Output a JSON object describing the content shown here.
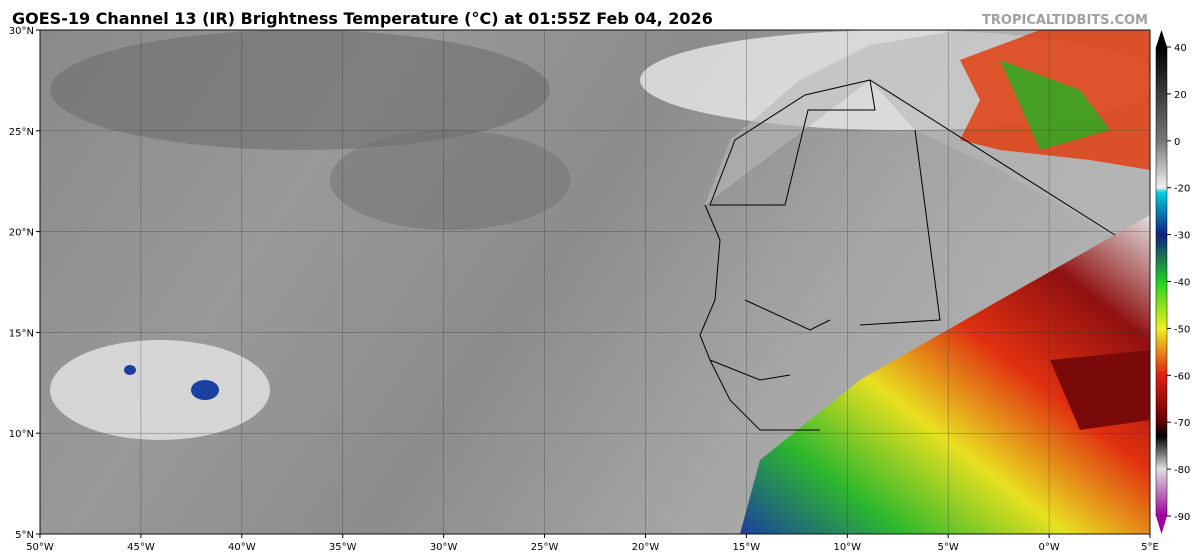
{
  "header": {
    "title": "GOES-19 Channel 13 (IR) Brightness Temperature (°C) at 01:55Z Feb 04, 2026",
    "watermark": "TROPICALTIDBITS.COM"
  },
  "map": {
    "lon_ticks": [
      {
        "value": -50,
        "label": "50°W"
      },
      {
        "value": -45,
        "label": "45°W"
      },
      {
        "value": -40,
        "label": "40°W"
      },
      {
        "value": -35,
        "label": "35°W"
      },
      {
        "value": -30,
        "label": "30°W"
      },
      {
        "value": -25,
        "label": "25°W"
      },
      {
        "value": -20,
        "label": "20°W"
      },
      {
        "value": -15,
        "label": "15°W"
      },
      {
        "value": -10,
        "label": "10°W"
      },
      {
        "value": -5,
        "label": "5°W"
      },
      {
        "value": 0,
        "label": "0°W"
      },
      {
        "value": 5,
        "label": "5°E"
      }
    ],
    "lat_ticks": [
      {
        "value": 30,
        "label": "30°N"
      },
      {
        "value": 25,
        "label": "25°N"
      },
      {
        "value": 20,
        "label": "20°N"
      },
      {
        "value": 15,
        "label": "15°N"
      },
      {
        "value": 10,
        "label": "10°N"
      },
      {
        "value": 5,
        "label": "5°N"
      }
    ]
  },
  "colorbar": {
    "ticks": [
      40,
      20,
      0,
      -20,
      -30,
      -40,
      -50,
      -60,
      -70,
      -80,
      -90
    ]
  }
}
